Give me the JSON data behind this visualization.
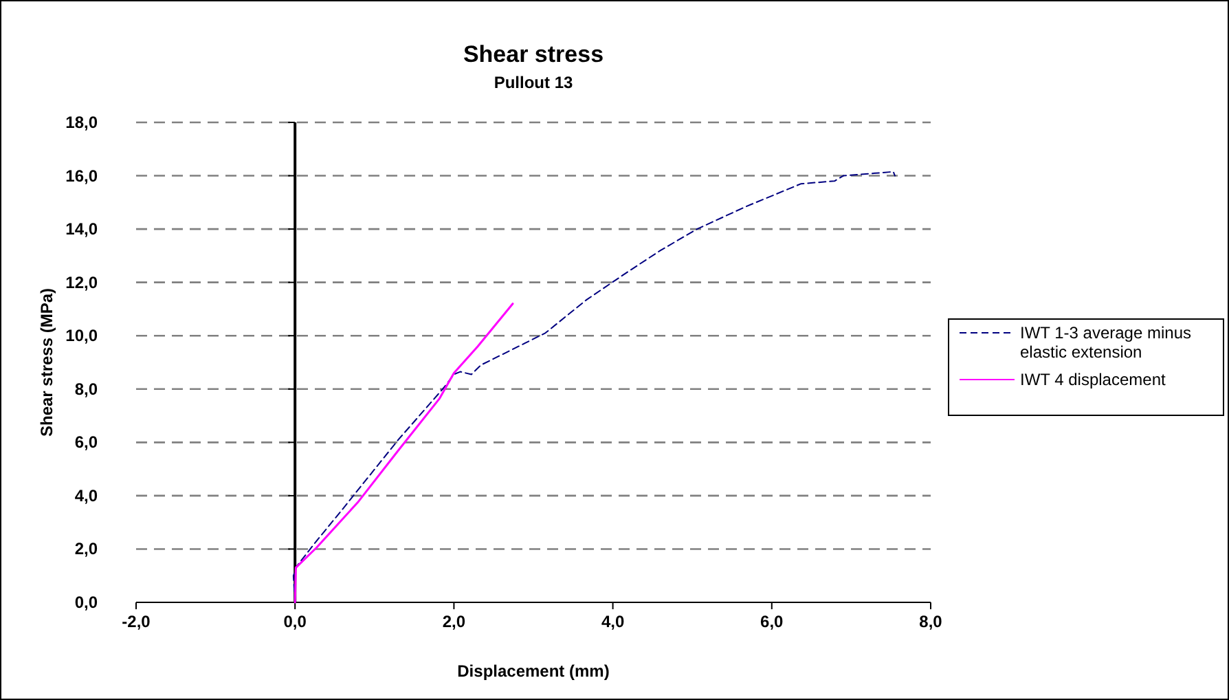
{
  "chart_data": {
    "type": "line",
    "title": "Shear stress",
    "subtitle": "Pullout 13",
    "xlabel": "Displacement (mm)",
    "ylabel": "Shear stress (MPa)",
    "xlim": [
      -2,
      8
    ],
    "xticks": [
      {
        "value": -2,
        "label": "-2,0"
      },
      {
        "value": 0,
        "label": "0,0"
      },
      {
        "value": 2,
        "label": "2,0"
      },
      {
        "value": 4,
        "label": "4,0"
      },
      {
        "value": 6,
        "label": "6,0"
      },
      {
        "value": 8,
        "label": "8,0"
      }
    ],
    "ylim": [
      0,
      18
    ],
    "yticks": [
      {
        "value": 0,
        "label": "0,0"
      },
      {
        "value": 2,
        "label": "2,0"
      },
      {
        "value": 4,
        "label": "4,0"
      },
      {
        "value": 6,
        "label": "6,0"
      },
      {
        "value": 8,
        "label": "8,0"
      },
      {
        "value": 10,
        "label": "10,0"
      },
      {
        "value": 12,
        "label": "12,0"
      },
      {
        "value": 14,
        "label": "14,0"
      },
      {
        "value": 16,
        "label": "16,0"
      },
      {
        "value": 18,
        "label": "18,0"
      }
    ],
    "grid": "y",
    "legend": "right",
    "series": [
      {
        "name": "IWT 1-3 average minus elastic extension",
        "color": "#000080",
        "line_style": "dashed",
        "x": [
          0,
          -0.02,
          0.02,
          0.27,
          0.6,
          1.3,
          1.8,
          1.9,
          2.0,
          2.08,
          2.22,
          2.34,
          3.15,
          3.67,
          4.19,
          4.6,
          5.06,
          5.68,
          6.37,
          6.79,
          6.9,
          7.53,
          7.55
        ],
        "values": [
          0,
          1.0,
          1.35,
          2.3,
          3.5,
          6.1,
          7.8,
          8.15,
          8.55,
          8.65,
          8.55,
          8.9,
          10.1,
          11.35,
          12.4,
          13.2,
          14.0,
          14.85,
          15.7,
          15.8,
          16.0,
          16.15,
          16.0
        ]
      },
      {
        "name": "IWT 4 displacement",
        "color": "#ff00ff",
        "line_style": "solid",
        "x": [
          0,
          0.01,
          0.27,
          0.79,
          1.3,
          1.82,
          2.0,
          2.3,
          2.74
        ],
        "values": [
          0,
          1.3,
          2.05,
          3.75,
          5.7,
          7.65,
          8.6,
          9.6,
          11.2
        ]
      }
    ]
  }
}
